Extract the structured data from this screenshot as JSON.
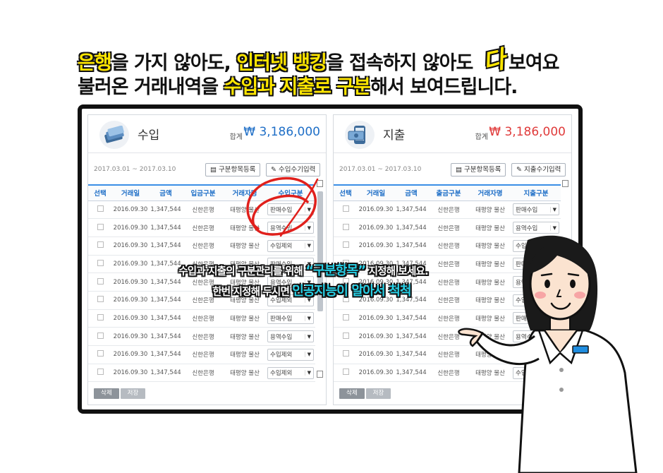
{
  "headline": {
    "line1": [
      {
        "text": "은행",
        "hl": true
      },
      {
        "text": "을 가지 않아도, ",
        "hl": false
      },
      {
        "text": "인터넷 뱅킹",
        "hl": true
      },
      {
        "text": "을 접속하지 않아도 ",
        "hl": false
      }
    ],
    "line1_da": "다",
    "line1_end": "보여요",
    "line2": [
      {
        "text": "불러온 거래내역을 ",
        "hl": false
      },
      {
        "text": "수입과 지출로 구분",
        "hl": true
      },
      {
        "text": "해서 보여드립니다.",
        "hl": false
      }
    ]
  },
  "income": {
    "title": "수입",
    "sum_label": "합계",
    "sum_value": "₩ 3,186,000",
    "date_range": "2017.03.01 ~ 2017.03.10",
    "btn_category": "구분항목등록",
    "btn_manual": "수입수기입력",
    "columns": [
      "선택",
      "거래일",
      "금액",
      "입금구분",
      "거래자명",
      "수입구분"
    ],
    "rows": [
      {
        "date": "2016.09.30",
        "amount": "1,347,544",
        "bank": "신한은행",
        "name": "태평양 물산",
        "cat": "판매수입"
      },
      {
        "date": "2016.09.30",
        "amount": "1,347,544",
        "bank": "신한은행",
        "name": "태평양 물산",
        "cat": "용역수입"
      },
      {
        "date": "2016.09.30",
        "amount": "1,347,544",
        "bank": "신한은행",
        "name": "태평양 물산",
        "cat": "수입제외"
      },
      {
        "date": "2016.09.30",
        "amount": "1,347,544",
        "bank": "신한은행",
        "name": "태평양 물산",
        "cat": "판매수입"
      },
      {
        "date": "2016.09.30",
        "amount": "1,347,544",
        "bank": "신한은행",
        "name": "태평양 물산",
        "cat": "용역수입"
      },
      {
        "date": "2016.09.30",
        "amount": "1,347,544",
        "bank": "신한은행",
        "name": "태평양 물산",
        "cat": "수입제외"
      },
      {
        "date": "2016.09.30",
        "amount": "1,347,544",
        "bank": "신한은행",
        "name": "태평양 물산",
        "cat": "판매수입"
      },
      {
        "date": "2016.09.30",
        "amount": "1,347,544",
        "bank": "신한은행",
        "name": "태평양 물산",
        "cat": "용역수입"
      },
      {
        "date": "2016.09.30",
        "amount": "1,347,544",
        "bank": "신한은행",
        "name": "태평양 물산",
        "cat": "수입제외"
      },
      {
        "date": "2016.09.30",
        "amount": "1,347,544",
        "bank": "신한은행",
        "name": "태평양 물산",
        "cat": "수입제외"
      }
    ],
    "btn_delete": "삭제",
    "btn_save": "저장"
  },
  "expense": {
    "title": "지출",
    "sum_label": "합계",
    "sum_value": "₩ 3,186,000",
    "date_range": "2017.03.01 ~ 2017.03.10",
    "btn_category": "구분항목등록",
    "btn_manual": "지출수기입력",
    "columns": [
      "선택",
      "거래일",
      "금액",
      "출금구분",
      "거래자명",
      "지출구분"
    ],
    "rows": [
      {
        "date": "2016.09.30",
        "amount": "1,347,544",
        "bank": "신한은행",
        "name": "태평양 물산",
        "cat": "판매수입"
      },
      {
        "date": "2016.09.30",
        "amount": "1,347,544",
        "bank": "신한은행",
        "name": "태평양 물산",
        "cat": "용역수입"
      },
      {
        "date": "2016.09.30",
        "amount": "1,347,544",
        "bank": "신한은행",
        "name": "태평양 물산",
        "cat": "수입제외"
      },
      {
        "date": "2016.09.30",
        "amount": "1,347,544",
        "bank": "신한은행",
        "name": "태평양 물산",
        "cat": "판매수입"
      },
      {
        "date": "2016.09.30",
        "amount": "1,347,544",
        "bank": "신한은행",
        "name": "태평양 물산",
        "cat": "용역수입"
      },
      {
        "date": "2016.09.30",
        "amount": "1,347,544",
        "bank": "신한은행",
        "name": "태평양 물산",
        "cat": "수입제외"
      },
      {
        "date": "2016.09.30",
        "amount": "1,347,544",
        "bank": "신한은행",
        "name": "태평양 물산",
        "cat": "판매수입"
      },
      {
        "date": "2016.09.30",
        "amount": "1,347,544",
        "bank": "신한은행",
        "name": "태평양 물산",
        "cat": "용역수입"
      },
      {
        "date": "2016.09.30",
        "amount": "1,347,544",
        "bank": "신한은행",
        "name": "태평양 물산",
        "cat": "수입제외"
      },
      {
        "date": "2016.09.30",
        "amount": "1,347,544",
        "bank": "신한은행",
        "name": "태평양 물산",
        "cat": "수입제외"
      }
    ],
    "btn_delete": "삭제",
    "btn_save": "저장"
  },
  "caption": {
    "line1_a": "수입과 지출의 구분관리를 위해 ",
    "line1_b": "“구분항목”",
    "line1_c": " 지정해 보세요.",
    "line2_a": "한번 지정해 두시면 ",
    "line2_b": "인공지능이 알아서 척척"
  },
  "colors": {
    "income_sum": "#1f6fc7",
    "expense_sum": "#e03b3b",
    "highlight": "#ffe600",
    "caption_accent": "#27d0e6"
  }
}
